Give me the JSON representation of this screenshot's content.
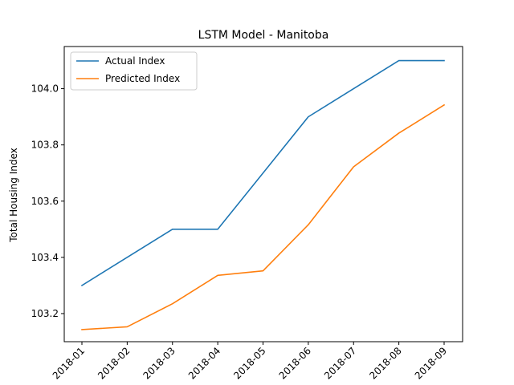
{
  "chart_data": {
    "type": "line",
    "title": "LSTM Model - Manitoba",
    "xlabel": "",
    "ylabel": "Total Housing Index",
    "categories": [
      "2018-01",
      "2018-02",
      "2018-03",
      "2018-04",
      "2018-05",
      "2018-06",
      "2018-07",
      "2018-08",
      "2018-09"
    ],
    "series": [
      {
        "name": "Actual Index",
        "color": "#1f77b4",
        "values": [
          103.3,
          103.4,
          103.5,
          103.5,
          103.7,
          103.9,
          104.0,
          104.1,
          104.1
        ]
      },
      {
        "name": "Predicted Index",
        "color": "#ff7f0e",
        "values": [
          103.143,
          103.153,
          103.235,
          103.336,
          103.352,
          103.516,
          103.722,
          103.842,
          103.942
        ]
      }
    ],
    "ylim": [
      103.1,
      104.15
    ],
    "yticks": [
      "103.2",
      "103.4",
      "103.6",
      "103.8",
      "104.0"
    ],
    "grid": false,
    "legend_position": "top-left"
  }
}
